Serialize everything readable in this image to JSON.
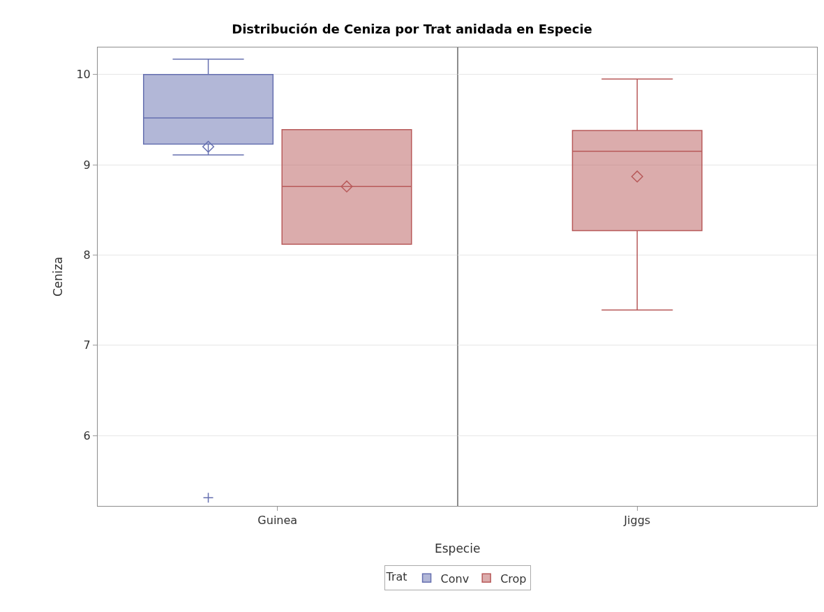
{
  "chart_data": {
    "type": "box",
    "title": "Distribución de Ceniza por Trat anidada en Especie",
    "xlabel": "Especie",
    "ylabel": "Ceniza",
    "legend_title": "Trat",
    "categories": [
      "Guinea",
      "Jiggs"
    ],
    "series": [
      {
        "name": "Conv",
        "color": "#6670b0",
        "boxes": [
          {
            "low": 9.11,
            "q1": 9.23,
            "median": 9.52,
            "q3": 10.0,
            "high": 10.17,
            "mean": 9.2,
            "outliers": [
              5.31
            ]
          },
          null
        ]
      },
      {
        "name": "Crop",
        "color": "#b85a5a",
        "boxes": [
          {
            "low": 8.12,
            "q1": 8.12,
            "median": 8.76,
            "q3": 9.39,
            "high": 9.39,
            "mean": 8.76
          },
          {
            "low": 7.39,
            "q1": 8.27,
            "median": 9.15,
            "q3": 9.38,
            "high": 9.95,
            "mean": 8.87
          }
        ]
      }
    ],
    "ylim": [
      5.22,
      10.3
    ],
    "yticks": [
      6,
      7,
      8,
      9,
      10
    ],
    "grid": "y",
    "legend": "bottom"
  }
}
